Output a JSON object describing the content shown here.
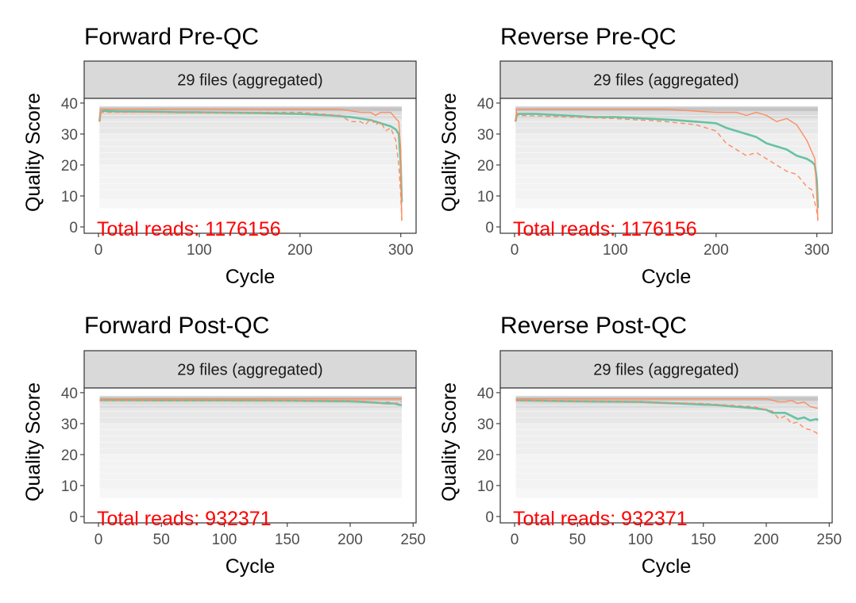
{
  "chart_data": [
    {
      "type": "heatmap",
      "title": "Forward Pre-QC",
      "strip": "29 files (aggregated)",
      "xlabel": "Cycle",
      "ylabel": "Quality Score",
      "xlim": [
        0,
        301
      ],
      "ylim": [
        0,
        41
      ],
      "xticks": [
        0,
        100,
        200,
        300
      ],
      "yticks": [
        0,
        10,
        20,
        30,
        40
      ],
      "reads_label": "Total reads: 1176156",
      "heat_x_max": 301,
      "series": [
        {
          "name": "",
          "role": "mean",
          "color": "#66c2a5",
          "x": [
            1,
            2,
            5,
            20,
            50,
            80,
            100,
            130,
            160,
            200,
            230,
            250,
            260,
            270,
            280,
            285,
            290,
            295,
            298,
            300,
            301
          ],
          "y": [
            34,
            37,
            37.5,
            37.3,
            37.2,
            37,
            37,
            36.9,
            36.8,
            36.5,
            36,
            35.5,
            35,
            34.5,
            33.5,
            33,
            32.5,
            31.5,
            30,
            20,
            8
          ]
        },
        {
          "name": "",
          "role": "median",
          "color": "#fc8d62",
          "x": [
            1,
            2,
            5,
            50,
            100,
            150,
            200,
            240,
            260,
            270,
            275,
            280,
            290,
            295,
            298,
            300,
            301
          ],
          "y": [
            34,
            38,
            38,
            38,
            38,
            38,
            38,
            38,
            37,
            37,
            36,
            37,
            37,
            35,
            34,
            25,
            2
          ]
        },
        {
          "name": "",
          "role": "quartile",
          "color": "#fc8d62",
          "x": [
            1,
            2,
            5,
            100,
            200,
            240,
            250,
            260,
            265,
            270,
            275,
            280,
            285,
            290,
            295,
            298,
            300,
            301
          ],
          "y": [
            34,
            37,
            37,
            37,
            37,
            36,
            34,
            34,
            33,
            35,
            33,
            34,
            31,
            32,
            28,
            20,
            10,
            2
          ]
        }
      ]
    },
    {
      "type": "heatmap",
      "title": "Reverse Pre-QC",
      "strip": "29 files (aggregated)",
      "xlabel": "Cycle",
      "ylabel": "Quality Score",
      "xlim": [
        0,
        301
      ],
      "ylim": [
        0,
        41
      ],
      "xticks": [
        0,
        100,
        200,
        300
      ],
      "yticks": [
        0,
        10,
        20,
        30,
        40
      ],
      "reads_label": "Total reads: 1176156",
      "heat_x_max": 301,
      "series": [
        {
          "name": "",
          "role": "mean",
          "color": "#66c2a5",
          "x": [
            1,
            2,
            5,
            20,
            50,
            80,
            100,
            130,
            160,
            180,
            200,
            210,
            220,
            230,
            240,
            250,
            260,
            270,
            280,
            290,
            295,
            298,
            300,
            301
          ],
          "y": [
            34,
            36,
            36.5,
            36.5,
            36,
            35.5,
            35.5,
            35,
            34.5,
            34,
            33.5,
            32,
            31,
            30,
            29,
            27,
            26,
            25,
            23,
            22,
            21,
            20,
            15,
            6
          ]
        },
        {
          "name": "",
          "role": "median",
          "color": "#fc8d62",
          "x": [
            1,
            2,
            5,
            100,
            150,
            200,
            220,
            230,
            240,
            250,
            255,
            260,
            270,
            280,
            290,
            298,
            300,
            301
          ],
          "y": [
            34,
            38,
            38,
            38,
            38,
            37,
            37,
            36,
            37,
            36,
            35,
            34,
            35,
            33,
            28,
            22,
            10,
            2
          ]
        },
        {
          "name": "",
          "role": "quartile",
          "color": "#fc8d62",
          "x": [
            1,
            2,
            5,
            100,
            150,
            180,
            200,
            210,
            220,
            230,
            240,
            250,
            260,
            270,
            280,
            290,
            295,
            300,
            301
          ],
          "y": [
            34,
            37,
            36,
            35,
            34,
            33,
            31,
            27,
            25,
            23,
            24,
            22,
            20,
            18,
            17,
            13,
            12,
            5,
            2
          ]
        }
      ]
    },
    {
      "type": "heatmap",
      "title": "Forward Post-QC",
      "strip": "29 files (aggregated)",
      "xlabel": "Cycle",
      "ylabel": "Quality Score",
      "xlim": [
        0,
        241
      ],
      "ylim": [
        0,
        41
      ],
      "xticks": [
        0,
        50,
        100,
        150,
        200,
        250
      ],
      "yticks": [
        0,
        10,
        20,
        30,
        40
      ],
      "reads_label": "Total reads: 932371",
      "heat_x_max": 241,
      "series": [
        {
          "name": "",
          "role": "mean",
          "color": "#66c2a5",
          "x": [
            1,
            5,
            50,
            100,
            150,
            200,
            210,
            220,
            230,
            235,
            240,
            241
          ],
          "y": [
            37.5,
            37.6,
            37.5,
            37.5,
            37.4,
            37.2,
            37,
            36.8,
            36.5,
            36.5,
            36,
            36
          ]
        },
        {
          "name": "",
          "role": "median",
          "color": "#fc8d62",
          "x": [
            1,
            241
          ],
          "y": [
            38,
            38
          ]
        },
        {
          "name": "",
          "role": "quartile",
          "color": "#fc8d62",
          "x": [
            1,
            100,
            200,
            220,
            225,
            230,
            235,
            240,
            241
          ],
          "y": [
            37.5,
            37.5,
            37.5,
            37,
            36.5,
            37,
            36.5,
            37,
            37
          ]
        }
      ]
    },
    {
      "type": "heatmap",
      "title": "Reverse Post-QC",
      "strip": "29 files (aggregated)",
      "xlabel": "Cycle",
      "ylabel": "Quality Score",
      "xlim": [
        0,
        241
      ],
      "ylim": [
        0,
        41
      ],
      "xticks": [
        0,
        50,
        100,
        150,
        200,
        250
      ],
      "yticks": [
        0,
        10,
        20,
        30,
        40
      ],
      "reads_label": "Total reads: 932371",
      "heat_x_max": 241,
      "series": [
        {
          "name": "",
          "role": "mean",
          "color": "#66c2a5",
          "x": [
            1,
            5,
            50,
            100,
            130,
            160,
            190,
            200,
            205,
            210,
            215,
            220,
            225,
            230,
            235,
            240,
            241
          ],
          "y": [
            37.5,
            37.5,
            37.2,
            37,
            36.5,
            36,
            35,
            34.5,
            33.5,
            33.5,
            33.5,
            32.5,
            31.5,
            32,
            31,
            31.5,
            31
          ]
        },
        {
          "name": "",
          "role": "median",
          "color": "#fc8d62",
          "x": [
            1,
            150,
            200,
            210,
            215,
            220,
            225,
            230,
            235,
            240,
            241
          ],
          "y": [
            38,
            38,
            38,
            37,
            37,
            37.5,
            36.5,
            37,
            35.5,
            35,
            35
          ]
        },
        {
          "name": "",
          "role": "quartile",
          "color": "#fc8d62",
          "x": [
            1,
            100,
            150,
            190,
            200,
            205,
            210,
            215,
            220,
            225,
            230,
            235,
            240,
            241
          ],
          "y": [
            37.5,
            37,
            36.5,
            35.5,
            34.5,
            34,
            31.5,
            32.5,
            30,
            30.5,
            28.5,
            28,
            27,
            26
          ]
        }
      ]
    }
  ]
}
